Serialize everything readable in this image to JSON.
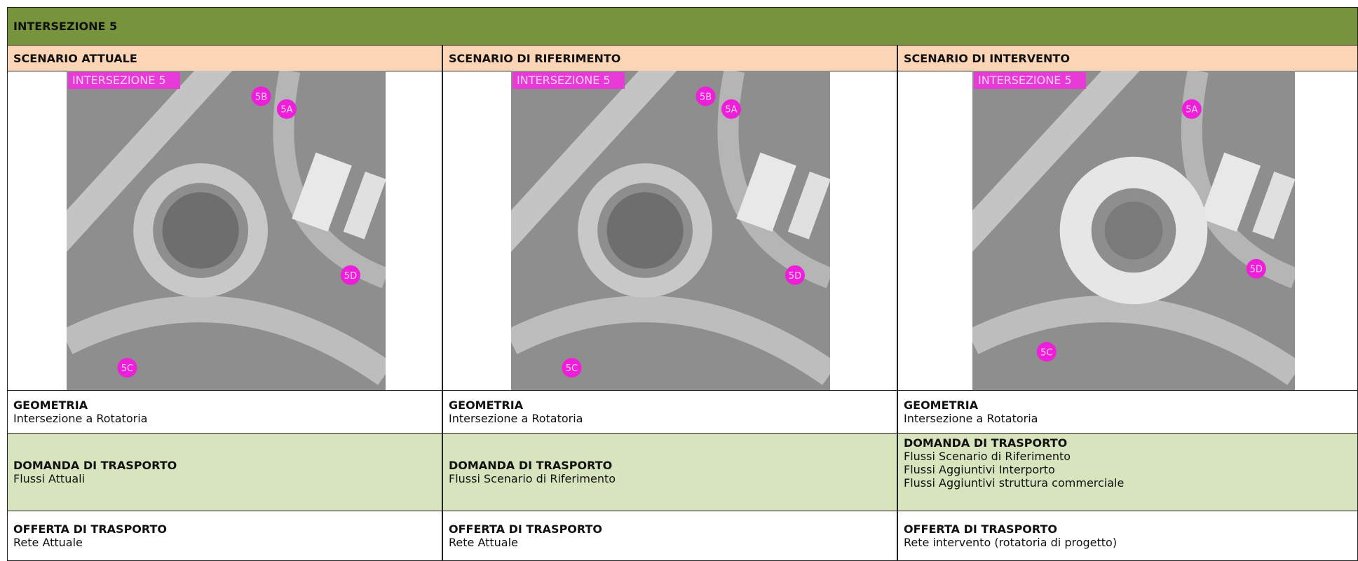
{
  "header": {
    "title": "INTERSEZIONE 5"
  },
  "columns": [
    {
      "scenario": "SCENARIO ATTUALE",
      "image": {
        "title": "INTERSEZIONE 5",
        "markers": [
          "5B",
          "5A",
          "5D",
          "5C"
        ]
      },
      "geometry": {
        "label": "GEOMETRIA",
        "text": "Intersezione a Rotatoria"
      },
      "demand": {
        "label": "DOMANDA DI TRASPORTO",
        "lines": [
          "Flussi Attuali"
        ]
      },
      "supply": {
        "label": "OFFERTA DI TRASPORTO",
        "text": "Rete Attuale"
      }
    },
    {
      "scenario": "SCENARIO DI RIFERIMENTO",
      "image": {
        "title": "INTERSEZIONE 5",
        "markers": [
          "5B",
          "5A",
          "5D",
          "5C"
        ]
      },
      "geometry": {
        "label": "GEOMETRIA",
        "text": "Intersezione a Rotatoria"
      },
      "demand": {
        "label": "DOMANDA DI TRASPORTO",
        "lines": [
          "Flussi Scenario di Riferimento"
        ]
      },
      "supply": {
        "label": "OFFERTA DI TRASPORTO",
        "text": "Rete Attuale"
      }
    },
    {
      "scenario": "SCENARIO DI INTERVENTO",
      "image": {
        "title": "INTERSEZIONE 5",
        "markers": [
          "5A",
          "5D",
          "5C"
        ]
      },
      "geometry": {
        "label": "GEOMETRIA",
        "text": "Intersezione a Rotatoria"
      },
      "demand": {
        "label": "DOMANDA DI TRASPORTO",
        "lines": [
          "Flussi Scenario di Riferimento",
          "Flussi Aggiuntivi Interporto",
          "Flussi Aggiuntivi struttura commerciale"
        ]
      },
      "supply": {
        "label": "OFFERTA DI TRASPORTO",
        "text": "Rete intervento (rotatoria di progetto)"
      }
    }
  ]
}
